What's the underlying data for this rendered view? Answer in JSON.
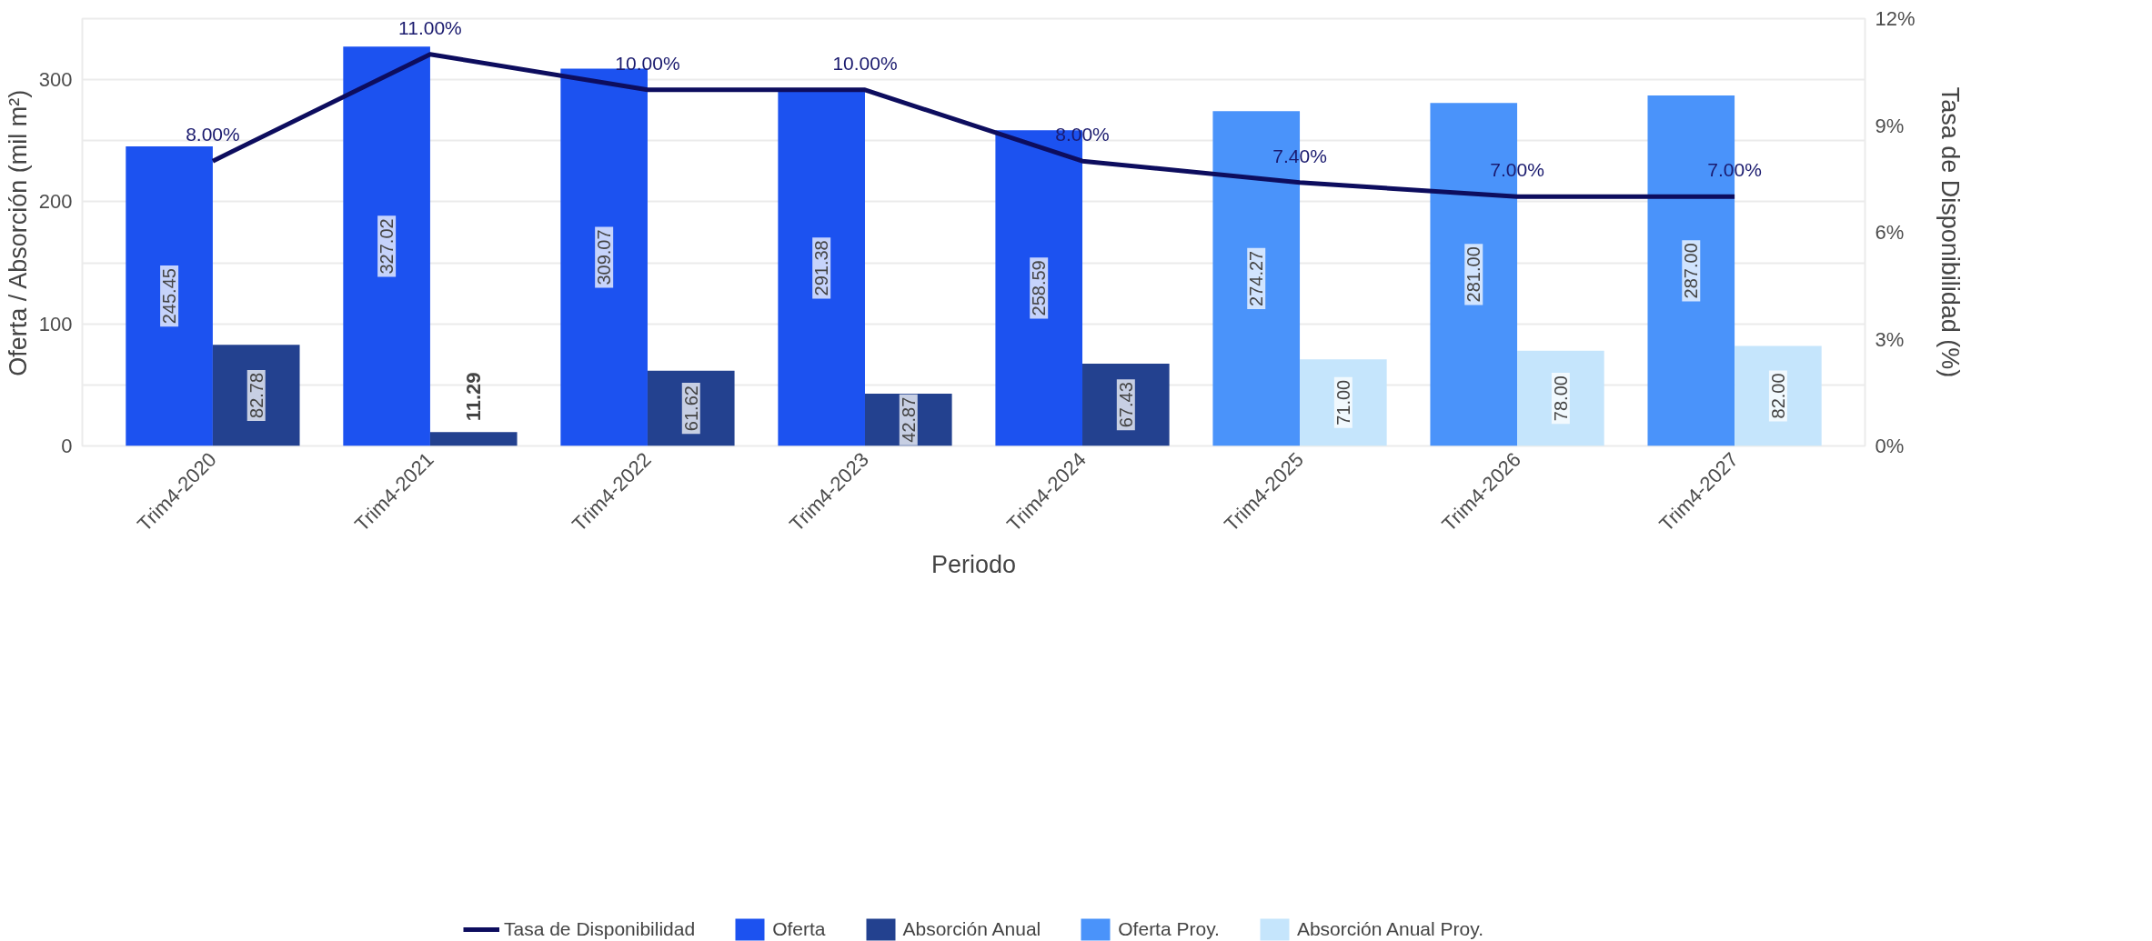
{
  "chart_data": {
    "type": "bar",
    "xlabel": "Periodo",
    "ylabel": "Oferta / Absorción (mil m²)",
    "y2label": "Tasa de Disponibilidad (%)",
    "categories": [
      "Trim4-2020",
      "Trim4-2021",
      "Trim4-2022",
      "Trim4-2023",
      "Trim4-2024",
      "Trim4-2025",
      "Trim4-2026",
      "Trim4-2027"
    ],
    "series": [
      {
        "name": "Tasa de Disponibilidad",
        "type": "line",
        "axis": "y2",
        "color": "#0d0d5e",
        "values": [
          8.0,
          11.0,
          10.0,
          10.0,
          8.0,
          7.4,
          7.0,
          7.0
        ],
        "value_labels": [
          "8.00%",
          "11.00%",
          "10.00%",
          "10.00%",
          "8.00%",
          "7.40%",
          "7.00%",
          "7.00%"
        ]
      },
      {
        "name": "Oferta",
        "color": "#1c52f0",
        "values": [
          245.45,
          327.02,
          309.07,
          291.38,
          258.59,
          null,
          null,
          null
        ],
        "value_labels": [
          "245.45",
          "327.02",
          "309.07",
          "291.38",
          "258.59",
          null,
          null,
          null
        ]
      },
      {
        "name": "Absorción Anual",
        "color": "#23418f",
        "values": [
          82.78,
          11.29,
          61.62,
          42.87,
          67.43,
          null,
          null,
          null
        ],
        "value_labels": [
          "82.78",
          "11.29",
          "61.62",
          "42.87",
          "67.43",
          null,
          null,
          null
        ]
      },
      {
        "name": "Oferta Proy.",
        "color": "#4a93fa",
        "values": [
          null,
          null,
          null,
          null,
          null,
          274.27,
          281.0,
          287.0
        ],
        "value_labels": [
          null,
          null,
          null,
          null,
          null,
          "274.27",
          "281.00",
          "287.00"
        ]
      },
      {
        "name": "Absorción Anual Proy.",
        "color": "#c5e5fc",
        "values": [
          null,
          null,
          null,
          null,
          null,
          71.0,
          78.0,
          82.0
        ],
        "value_labels": [
          null,
          null,
          null,
          null,
          null,
          "71.00",
          "78.00",
          "82.00"
        ]
      }
    ],
    "ylim": [
      0,
      350
    ],
    "yticks": [
      0,
      {
        "value": 50,
        "label": null
      },
      100,
      {
        "value": 150,
        "label": null
      },
      200,
      {
        "value": 250,
        "label": null
      },
      300
    ],
    "y2lim": [
      0,
      12
    ],
    "y2ticks": [
      {
        "value": 0,
        "label": "0%"
      },
      {
        "value": 3,
        "label": "3%"
      },
      {
        "value": 6,
        "label": "6%"
      },
      {
        "value": 9,
        "label": "9%"
      },
      {
        "value": 12,
        "label": "12%"
      }
    ],
    "grid": "y",
    "legend": "bottom",
    "marker": "none",
    "line_style": "solid"
  }
}
